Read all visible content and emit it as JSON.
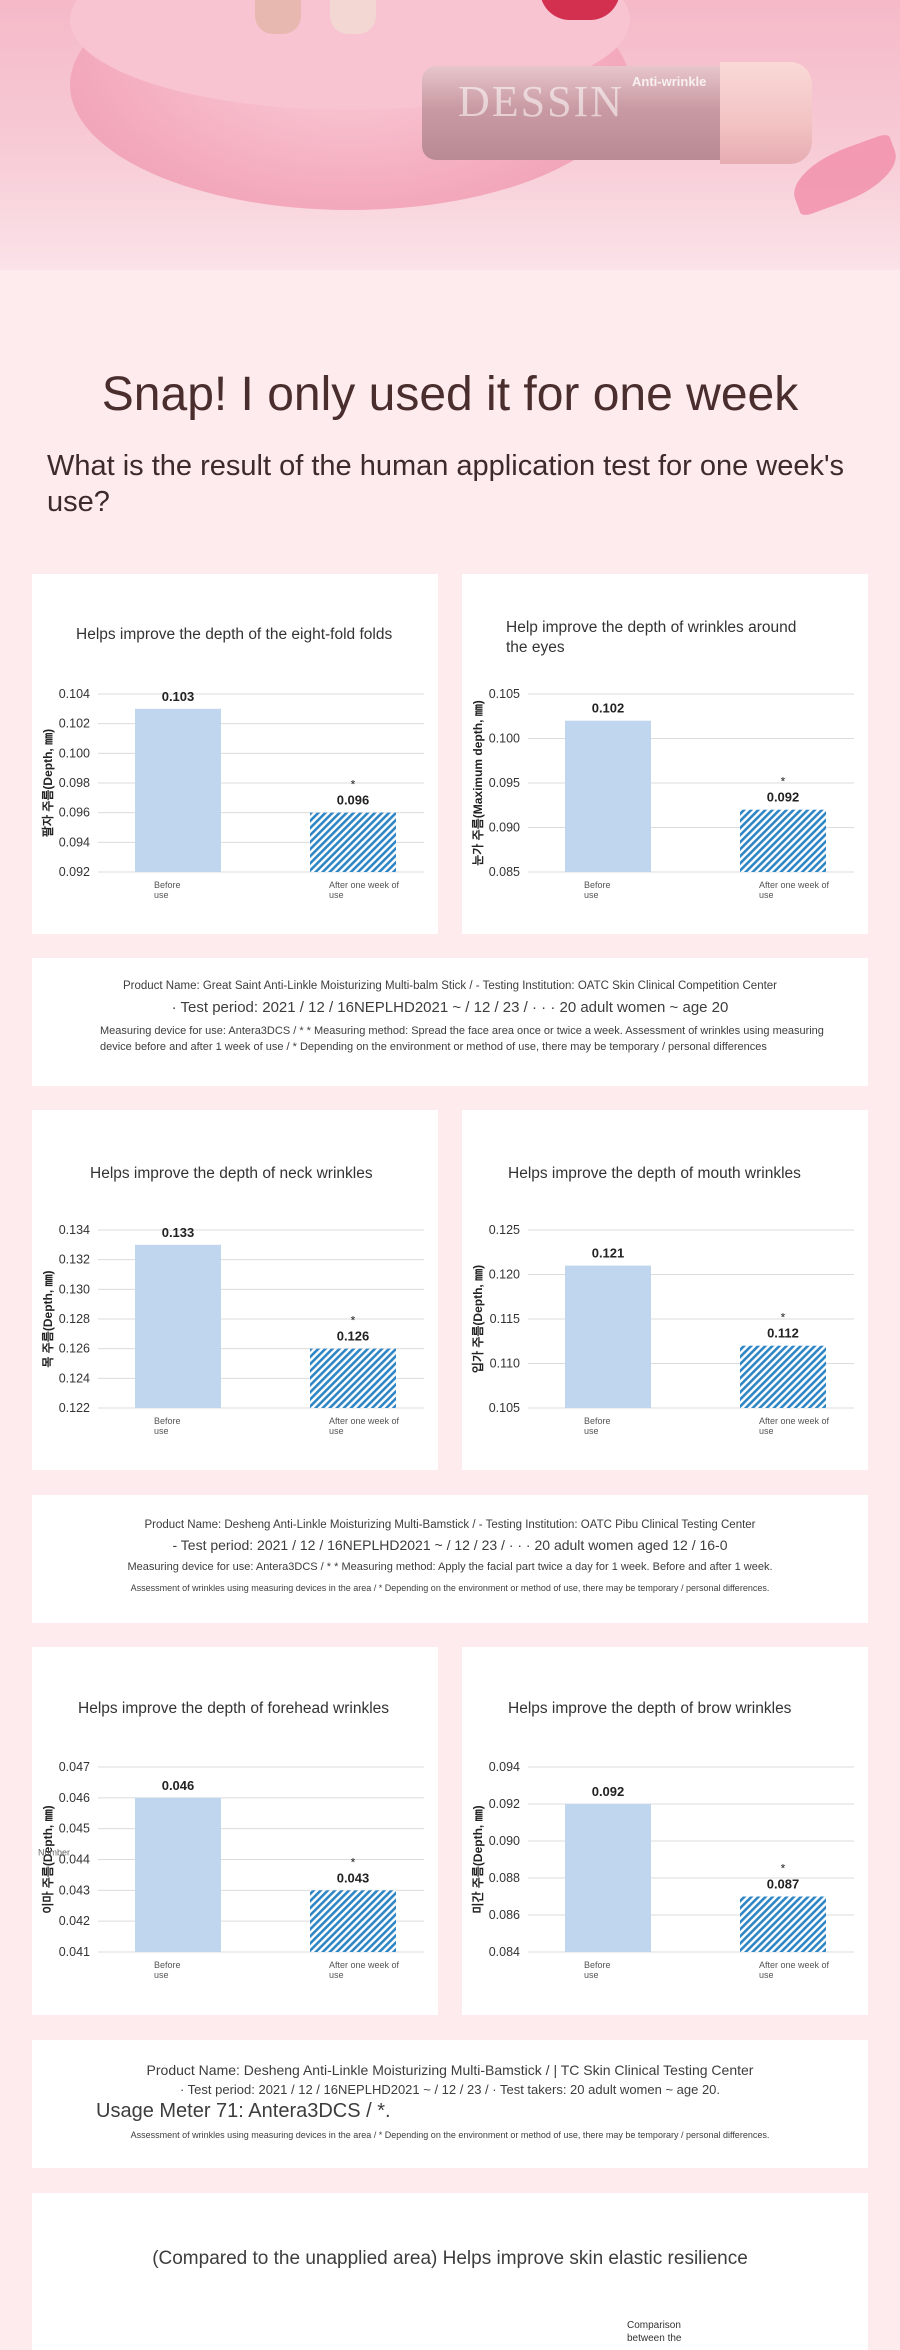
{
  "hero": {
    "brand": "DESSIN",
    "brand_sub": "Anti-wrinkle"
  },
  "main_title": "Snap! I only used it for one week",
  "subtitle": "What is the result of the human application test for one week's use?",
  "colors": {
    "before_bar": "#c0d6ee",
    "after_bar": "#2f86c5",
    "card": "#ffffff",
    "page": "#fdebed"
  },
  "charts": [
    {
      "title": "Helps improve the depth of the eight-fold folds",
      "ylabel": "팔자 주름(Depth, ㎜)",
      "yticks": [
        "0.092",
        "0.094",
        "0.096",
        "0.098",
        "0.100",
        "0.102",
        "0.104"
      ],
      "ylim": [
        0.092,
        0.104
      ],
      "before_label": "Before use",
      "after_label": "After one week of use",
      "before_value": 0.103,
      "after_value": 0.096,
      "before_text": "0.103",
      "after_text": "0.096",
      "star": "*"
    },
    {
      "title": "Help improve the depth of wrinkles around the eyes",
      "ylabel": "눈가 주름(Maximum depth, ㎜)",
      "yticks": [
        "0.085",
        "0.090",
        "0.095",
        "0.100",
        "0.105"
      ],
      "ylim": [
        0.085,
        0.105
      ],
      "before_label": "Before use",
      "after_label": "After one week of use",
      "before_value": 0.102,
      "after_value": 0.092,
      "before_text": "0.102",
      "after_text": "0.092",
      "star": "*"
    },
    {
      "title": "Helps improve the depth of neck wrinkles",
      "ylabel": "목 주름(Depth, ㎜)",
      "yticks": [
        "0.122",
        "0.124",
        "0.126",
        "0.128",
        "0.130",
        "0.132",
        "0.134"
      ],
      "ylim": [
        0.122,
        0.134
      ],
      "before_label": "Before use",
      "after_label": "After one week of use",
      "before_value": 0.133,
      "after_value": 0.126,
      "before_text": "0.133",
      "after_text": "0.126",
      "star": "*"
    },
    {
      "title": "Helps improve the depth of mouth wrinkles",
      "ylabel": "입가 주름(Depth, ㎜)",
      "yticks": [
        "0.105",
        "0.110",
        "0.115",
        "0.120",
        "0.125"
      ],
      "ylim": [
        0.105,
        0.125
      ],
      "before_label": "Before use",
      "after_label": "After one week of use",
      "before_value": 0.121,
      "after_value": 0.112,
      "before_text": "0.121",
      "after_text": "0.112",
      "star": "*"
    },
    {
      "title": "Helps improve the depth of forehead wrinkles",
      "ylabel": "이마 주름(Depth, ㎜)",
      "yticks": [
        "0.041",
        "0.042",
        "0.043",
        "0.044",
        "0.045",
        "0.046",
        "0.047"
      ],
      "ylim": [
        0.041,
        0.047
      ],
      "before_label": "Before use",
      "after_label": "After one week of use",
      "before_value": 0.046,
      "after_value": 0.043,
      "before_text": "0.046",
      "after_text": "0.043",
      "star": "*",
      "overlay": "Number"
    },
    {
      "title": "Helps improve the depth of brow wrinkles",
      "ylabel": "미간 주름(Depth, ㎜)",
      "yticks": [
        "0.084",
        "0.086",
        "0.088",
        "0.090",
        "0.092",
        "0.094"
      ],
      "ylim": [
        0.084,
        0.094
      ],
      "before_label": "Before use",
      "after_label": "After one week of use",
      "before_value": 0.092,
      "after_value": 0.087,
      "before_text": "0.092",
      "after_text": "0.087",
      "star": "*"
    }
  ],
  "notes": [
    {
      "line1": "Product Name: Great Saint Anti-Linkle Moisturizing Multi-balm Stick / - Testing Institution: OATC Skin Clinical Competition Center",
      "line2": "· Test period: 2021 / 12 / 16NEPLHD2021 ~ / 12 / 23 / · · · 20 adult women ~ age 20",
      "line3": "Measuring device for use: Antera3DCS / * * Measuring method: Spread the face area once or twice a week. Assessment of wrinkles using measuring device before and after 1 week of use / * Depending on the environment or method of use, there may be temporary / personal differences"
    },
    {
      "line1": "Product Name: Desheng Anti-Linkle Moisturizing Multi-Bamstick / - Testing Institution: OATC Pibu Clinical Testing Center",
      "line2": "- Test period: 2021 / 12 / 16NEPLHD2021 ~ / 12 / 23 / · · · 20 adult women aged 12 / 16-0",
      "line3": "Measuring device for use: Antera3DCS / * * Measuring method: Apply the facial part twice a day for 1 week. Before and after 1 week.",
      "line4": "Assessment of wrinkles using measuring devices in the area / * Depending on the environment or method of use, there may be temporary / personal differences."
    },
    {
      "line1": "Product Name: Desheng Anti-Linkle Moisturizing Multi-Bamstick / | TC Skin Clinical Testing Center",
      "line2": "· Test period: 2021 / 12 / 16NEPLHD2021 ~ / 12 / 23 / · Test takers: 20 adult women ~ age 20.",
      "line3": "Usage Meter 71: Antera3DCS / *.",
      "line4": "Assessment of wrinkles using measuring devices in the area / * Depending on the environment or method of use, there may be temporary / personal differences."
    }
  ],
  "elastic": {
    "title": "(Compared to the unapplied area) Helps improve skin elastic resilience",
    "legend": "Comparison between the"
  },
  "chart_data": [
    {
      "type": "bar",
      "title": "Helps improve the depth of the eight-fold folds",
      "categories": [
        "Before use",
        "After one week of use"
      ],
      "values": [
        0.103,
        0.096
      ],
      "ylabel": "팔자 주름(Depth, ㎜)",
      "ylim": [
        0.092,
        0.104
      ]
    },
    {
      "type": "bar",
      "title": "Help improve the depth of wrinkles around the eyes",
      "categories": [
        "Before use",
        "After one week of use"
      ],
      "values": [
        0.102,
        0.092
      ],
      "ylabel": "눈가 주름(Maximum depth, ㎜)",
      "ylim": [
        0.085,
        0.105
      ]
    },
    {
      "type": "bar",
      "title": "Helps improve the depth of neck wrinkles",
      "categories": [
        "Before use",
        "After one week of use"
      ],
      "values": [
        0.133,
        0.126
      ],
      "ylabel": "목 주름(Depth, ㎜)",
      "ylim": [
        0.122,
        0.134
      ]
    },
    {
      "type": "bar",
      "title": "Helps improve the depth of mouth wrinkles",
      "categories": [
        "Before use",
        "After one week of use"
      ],
      "values": [
        0.121,
        0.112
      ],
      "ylabel": "입가 주름(Depth, ㎜)",
      "ylim": [
        0.105,
        0.125
      ]
    },
    {
      "type": "bar",
      "title": "Helps improve the depth of forehead wrinkles",
      "categories": [
        "Before use",
        "After one week of use"
      ],
      "values": [
        0.046,
        0.043
      ],
      "ylabel": "이마 주름(Depth, ㎜)",
      "ylim": [
        0.041,
        0.047
      ]
    },
    {
      "type": "bar",
      "title": "Helps improve the depth of brow wrinkles",
      "categories": [
        "Before use",
        "After one week of use"
      ],
      "values": [
        0.092,
        0.087
      ],
      "ylabel": "미간 주름(Depth, ㎜)",
      "ylim": [
        0.084,
        0.094
      ]
    }
  ]
}
